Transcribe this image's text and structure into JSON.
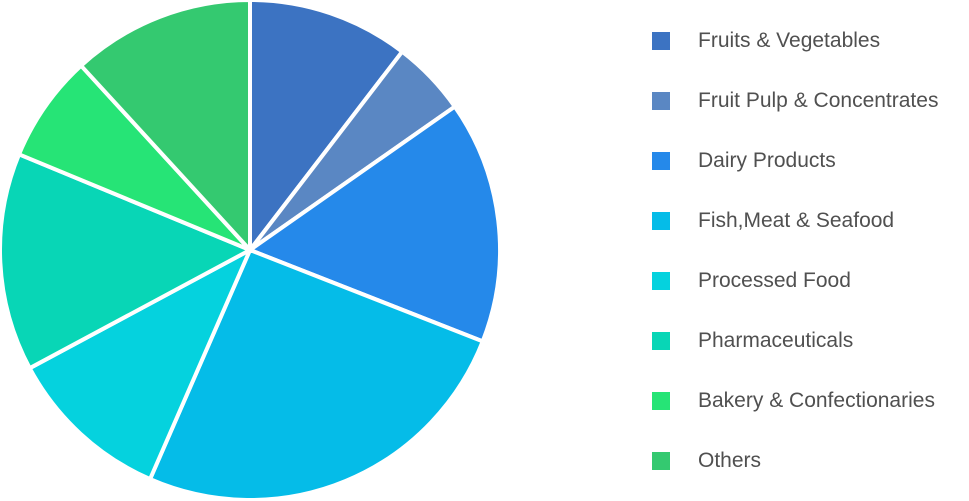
{
  "chart_data": {
    "type": "pie",
    "title": "",
    "legend_position": "right",
    "slices": [
      {
        "label": "Fruits & Vegetables",
        "value": 10.5,
        "color": "#3c73c2"
      },
      {
        "label": "Fruit Pulp & Concentrates",
        "value": 4.9,
        "color": "#5a87c3"
      },
      {
        "label": "Dairy Products",
        "value": 15.8,
        "color": "#2589ea"
      },
      {
        "label": "Fish,Meat & Seafood",
        "value": 25.8,
        "color": "#05bce8"
      },
      {
        "label": "Processed Food",
        "value": 10.7,
        "color": "#05d2de"
      },
      {
        "label": "Pharmaceuticals",
        "value": 14.2,
        "color": "#08d6b6"
      },
      {
        "label": "Bakery & Confectionaries",
        "value": 7.0,
        "color": "#26e476"
      },
      {
        "label": "Others",
        "value": 11.9,
        "color": "#34c970"
      }
    ]
  }
}
